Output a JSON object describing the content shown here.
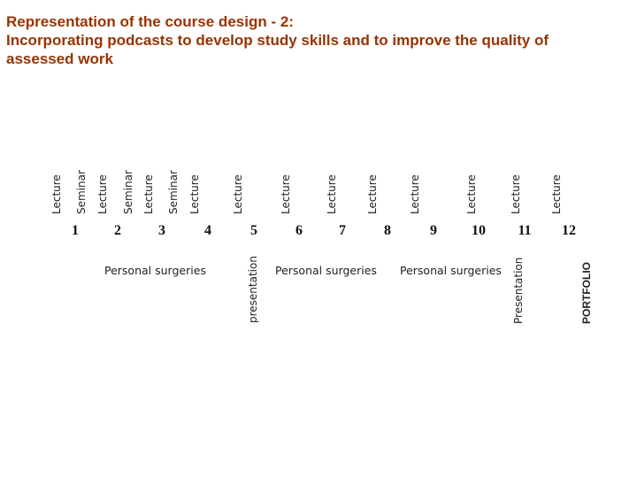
{
  "title": {
    "line1": "Representation of the course design - 2:",
    "line2": "Incorporating podcasts to develop study skills and to improve the quality of",
    "line3": "assessed work"
  },
  "top_labels": [
    "Lecture",
    "Seminar",
    "Lecture",
    "Seminar",
    "Lecture",
    "Seminar",
    "Lecture",
    "Lecture",
    "Lecture",
    "Lecture",
    "Lecture",
    "Lecture",
    "Lecture",
    "Lecture",
    "Lecture"
  ],
  "weeks": [
    "1",
    "2",
    "3",
    "4",
    "5",
    "6",
    "7",
    "8",
    "9",
    "10",
    "11",
    "12"
  ],
  "personal_surgeries": [
    "Personal surgeries",
    "Personal surgeries",
    "Personal surgeries"
  ],
  "presentation_1": "presentation",
  "presentation_2": "Presentation",
  "portfolio": "PORTFOLIO",
  "colors": {
    "title": "#993300",
    "text": "#222222"
  }
}
